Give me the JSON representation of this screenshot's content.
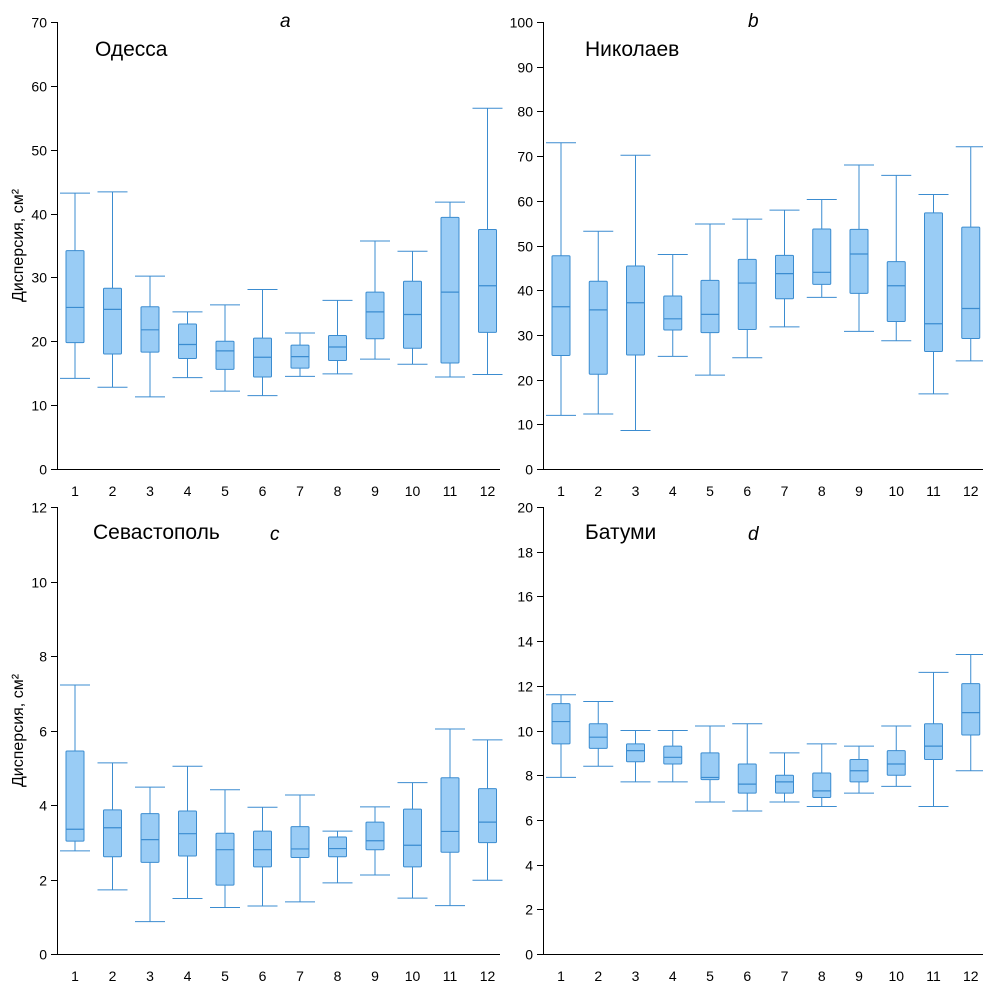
{
  "figure": {
    "ylabel": "Дисперсия, см²",
    "box_fill": "#99ccf5",
    "box_stroke": "#3b8cd0",
    "axis_color": "#000000"
  },
  "chart_data": [
    {
      "type": "box",
      "panel_letter": "a",
      "title": "Одесса",
      "ylabel": "Дисперсия, см²",
      "ylim": [
        0,
        70
      ],
      "yticks": [
        0,
        10,
        20,
        30,
        40,
        50,
        60,
        70
      ],
      "categories": [
        "1",
        "2",
        "3",
        "4",
        "5",
        "6",
        "7",
        "8",
        "9",
        "10",
        "11",
        "12"
      ],
      "boxes": [
        {
          "min": 14.2,
          "q1": 19.8,
          "median": 25.3,
          "q3": 34.2,
          "max": 43.2
        },
        {
          "min": 12.8,
          "q1": 18.0,
          "median": 25.0,
          "q3": 28.3,
          "max": 43.4
        },
        {
          "min": 11.3,
          "q1": 18.3,
          "median": 21.8,
          "q3": 25.4,
          "max": 30.2
        },
        {
          "min": 14.3,
          "q1": 17.3,
          "median": 19.5,
          "q3": 22.7,
          "max": 24.6
        },
        {
          "min": 12.2,
          "q1": 15.6,
          "median": 18.5,
          "q3": 20.0,
          "max": 25.7
        },
        {
          "min": 11.5,
          "q1": 14.4,
          "median": 17.5,
          "q3": 20.5,
          "max": 28.1
        },
        {
          "min": 14.5,
          "q1": 15.8,
          "median": 17.6,
          "q3": 19.4,
          "max": 21.3
        },
        {
          "min": 14.9,
          "q1": 17.0,
          "median": 19.1,
          "q3": 20.9,
          "max": 26.4
        },
        {
          "min": 17.2,
          "q1": 20.4,
          "median": 24.6,
          "q3": 27.7,
          "max": 35.7
        },
        {
          "min": 16.4,
          "q1": 18.9,
          "median": 24.2,
          "q3": 29.4,
          "max": 34.1
        },
        {
          "min": 14.4,
          "q1": 16.6,
          "median": 27.7,
          "q3": 39.4,
          "max": 41.8
        },
        {
          "min": 14.8,
          "q1": 21.4,
          "median": 28.7,
          "q3": 37.5,
          "max": 56.5
        }
      ]
    },
    {
      "type": "box",
      "panel_letter": "b",
      "title": "Николаев",
      "ylabel": "",
      "ylim": [
        0,
        100
      ],
      "yticks": [
        0,
        10,
        20,
        30,
        40,
        50,
        60,
        70,
        80,
        90,
        100
      ],
      "categories": [
        "1",
        "2",
        "3",
        "4",
        "5",
        "6",
        "7",
        "8",
        "9",
        "10",
        "11",
        "12"
      ],
      "boxes": [
        {
          "min": 12.0,
          "q1": 25.4,
          "median": 36.3,
          "q3": 47.7,
          "max": 73.0
        },
        {
          "min": 12.3,
          "q1": 21.2,
          "median": 35.6,
          "q3": 42.0,
          "max": 53.2
        },
        {
          "min": 8.6,
          "q1": 25.5,
          "median": 37.2,
          "q3": 45.4,
          "max": 70.2
        },
        {
          "min": 25.2,
          "q1": 31.1,
          "median": 33.6,
          "q3": 38.7,
          "max": 48.0
        },
        {
          "min": 21.0,
          "q1": 30.5,
          "median": 34.6,
          "q3": 42.2,
          "max": 54.8
        },
        {
          "min": 24.9,
          "q1": 31.2,
          "median": 41.6,
          "q3": 46.9,
          "max": 55.9
        },
        {
          "min": 31.8,
          "q1": 38.1,
          "median": 43.7,
          "q3": 47.8,
          "max": 57.9
        },
        {
          "min": 38.4,
          "q1": 41.3,
          "median": 44.0,
          "q3": 53.7,
          "max": 60.3
        },
        {
          "min": 30.8,
          "q1": 39.3,
          "median": 48.1,
          "q3": 53.6,
          "max": 68.0
        },
        {
          "min": 28.7,
          "q1": 33.0,
          "median": 41.0,
          "q3": 46.4,
          "max": 65.7
        },
        {
          "min": 16.8,
          "q1": 26.3,
          "median": 32.5,
          "q3": 57.3,
          "max": 61.4
        },
        {
          "min": 24.2,
          "q1": 29.2,
          "median": 35.9,
          "q3": 54.1,
          "max": 72.1
        }
      ]
    },
    {
      "type": "box",
      "panel_letter": "c",
      "title": "Севастополь",
      "ylabel": "Дисперсия, см²",
      "ylim": [
        0,
        12
      ],
      "yticks": [
        0,
        2,
        4,
        6,
        8,
        10,
        12
      ],
      "categories": [
        "1",
        "2",
        "3",
        "4",
        "5",
        "6",
        "7",
        "8",
        "9",
        "10",
        "11",
        "12"
      ],
      "boxes": [
        {
          "min": 2.77,
          "q1": 3.03,
          "median": 3.35,
          "q3": 5.45,
          "max": 7.22
        },
        {
          "min": 1.72,
          "q1": 2.61,
          "median": 3.39,
          "q3": 3.87,
          "max": 5.13
        },
        {
          "min": 0.87,
          "q1": 2.46,
          "median": 3.07,
          "q3": 3.77,
          "max": 4.48
        },
        {
          "min": 1.49,
          "q1": 2.63,
          "median": 3.23,
          "q3": 3.84,
          "max": 5.04
        },
        {
          "min": 1.25,
          "q1": 1.85,
          "median": 2.8,
          "q3": 3.24,
          "max": 4.41
        },
        {
          "min": 1.29,
          "q1": 2.34,
          "median": 2.8,
          "q3": 3.3,
          "max": 3.94
        },
        {
          "min": 1.4,
          "q1": 2.59,
          "median": 2.82,
          "q3": 3.42,
          "max": 4.27
        },
        {
          "min": 1.91,
          "q1": 2.61,
          "median": 2.83,
          "q3": 3.14,
          "max": 3.3
        },
        {
          "min": 2.12,
          "q1": 2.8,
          "median": 3.04,
          "q3": 3.54,
          "max": 3.95
        },
        {
          "min": 1.5,
          "q1": 2.34,
          "median": 2.92,
          "q3": 3.89,
          "max": 4.6
        },
        {
          "min": 1.3,
          "q1": 2.73,
          "median": 3.29,
          "q3": 4.73,
          "max": 6.04
        },
        {
          "min": 1.98,
          "q1": 2.99,
          "median": 3.54,
          "q3": 4.44,
          "max": 5.75
        }
      ]
    },
    {
      "type": "box",
      "panel_letter": "d",
      "title": "Батуми",
      "ylabel": "",
      "ylim": [
        0,
        20
      ],
      "yticks": [
        0,
        2,
        4,
        6,
        8,
        10,
        12,
        14,
        16,
        18,
        20
      ],
      "categories": [
        "1",
        "2",
        "3",
        "4",
        "5",
        "6",
        "7",
        "8",
        "9",
        "10",
        "11",
        "12"
      ],
      "boxes": [
        {
          "min": 7.9,
          "q1": 9.4,
          "median": 10.4,
          "q3": 11.2,
          "max": 11.6
        },
        {
          "min": 8.4,
          "q1": 9.2,
          "median": 9.7,
          "q3": 10.3,
          "max": 11.3
        },
        {
          "min": 7.7,
          "q1": 8.6,
          "median": 9.1,
          "q3": 9.4,
          "max": 10.0
        },
        {
          "min": 7.7,
          "q1": 8.5,
          "median": 8.8,
          "q3": 9.3,
          "max": 10.0
        },
        {
          "min": 6.8,
          "q1": 7.8,
          "median": 7.9,
          "q3": 9.0,
          "max": 10.2
        },
        {
          "min": 6.4,
          "q1": 7.2,
          "median": 7.6,
          "q3": 8.5,
          "max": 10.3
        },
        {
          "min": 6.8,
          "q1": 7.2,
          "median": 7.7,
          "q3": 8.0,
          "max": 9.0
        },
        {
          "min": 6.6,
          "q1": 7.0,
          "median": 7.3,
          "q3": 8.1,
          "max": 9.4
        },
        {
          "min": 7.2,
          "q1": 7.7,
          "median": 8.2,
          "q3": 8.7,
          "max": 9.3
        },
        {
          "min": 7.5,
          "q1": 8.0,
          "median": 8.5,
          "q3": 9.1,
          "max": 10.2
        },
        {
          "min": 6.6,
          "q1": 8.7,
          "median": 9.3,
          "q3": 10.3,
          "max": 12.6
        },
        {
          "min": 8.2,
          "q1": 9.8,
          "median": 10.8,
          "q3": 12.1,
          "max": 13.4
        }
      ]
    }
  ]
}
